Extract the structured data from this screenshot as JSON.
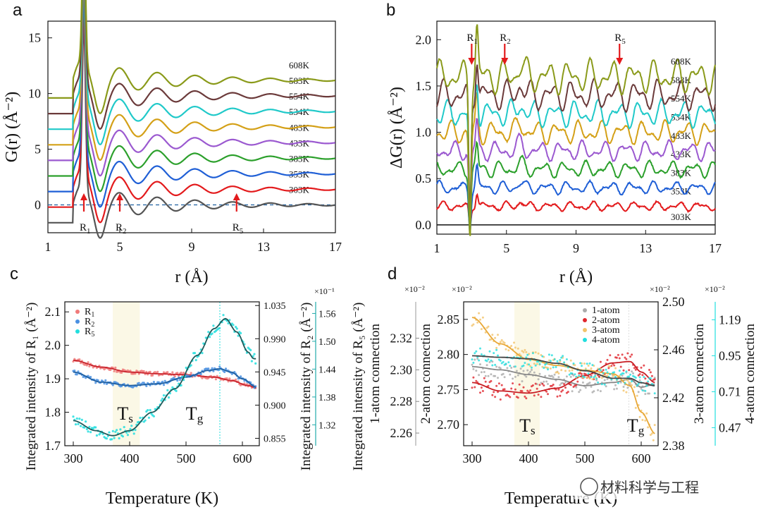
{
  "watermark": "材料科学与工程",
  "chart_data": [
    {
      "panel": "a",
      "type": "line",
      "xlabel": "r (Å)",
      "ylabel": "G(r) (Å⁻²)",
      "xlim": [
        1,
        17
      ],
      "ylim": [
        -2.5,
        16.5
      ],
      "xticks": [
        1,
        5,
        9,
        13,
        17
      ],
      "yticks": [
        0,
        5,
        10,
        15
      ],
      "series": [
        {
          "name": "303K",
          "color": "#555555",
          "offset": 0
        },
        {
          "name": "353K",
          "color": "#e31a1c",
          "offset": 1.4
        },
        {
          "name": "383K",
          "color": "#1f5fd6",
          "offset": 2.8
        },
        {
          "name": "433K",
          "color": "#2ca02c",
          "offset": 4.2
        },
        {
          "name": "483K",
          "color": "#9b59d0",
          "offset": 5.6
        },
        {
          "name": "534K",
          "color": "#d4a017",
          "offset": 7.0
        },
        {
          "name": "554K",
          "color": "#20c9c9",
          "offset": 8.4
        },
        {
          "name": "583K",
          "color": "#6b3a3a",
          "offset": 9.8
        },
        {
          "name": "608K",
          "color": "#8a9a1a",
          "offset": 11.2
        }
      ],
      "annotations": [
        {
          "label": "R",
          "sub": "1",
          "x": 3.0
        },
        {
          "label": "R",
          "sub": "2",
          "x": 5.0
        },
        {
          "label": "R",
          "sub": "5",
          "x": 11.5
        }
      ],
      "baseline": 0
    },
    {
      "panel": "b",
      "type": "line",
      "xlabel": "r (Å)",
      "ylabel": "ΔG(r) (Å⁻²)",
      "xlim": [
        1,
        17
      ],
      "ylim": [
        -0.1,
        2.2
      ],
      "xticks": [
        1,
        5,
        9,
        13,
        17
      ],
      "yticks": [
        0.0,
        0.5,
        1.0,
        1.5,
        2.0
      ],
      "yticklabels": [
        "0.0",
        "0.5",
        "1.0",
        "1.5",
        "2.0"
      ],
      "series": [
        {
          "name": "303K",
          "color": "#555555",
          "offset": 0.0
        },
        {
          "name": "353K",
          "color": "#e31a1c",
          "offset": 0.2
        },
        {
          "name": "383K",
          "color": "#1f5fd6",
          "offset": 0.4
        },
        {
          "name": "433K",
          "color": "#2ca02c",
          "offset": 0.6
        },
        {
          "name": "483K",
          "color": "#9b59d0",
          "offset": 0.8
        },
        {
          "name": "534K",
          "color": "#d4a017",
          "offset": 1.0
        },
        {
          "name": "554K",
          "color": "#20c9c9",
          "offset": 1.2
        },
        {
          "name": "583K",
          "color": "#6b3a3a",
          "offset": 1.4
        },
        {
          "name": "608K",
          "color": "#8a9a1a",
          "offset": 1.6
        }
      ],
      "annotations": [
        {
          "label": "R",
          "sub": "1",
          "x": 3.0
        },
        {
          "label": "R",
          "sub": "2",
          "x": 4.9
        },
        {
          "label": "R",
          "sub": "5",
          "x": 11.5
        }
      ]
    },
    {
      "panel": "c",
      "type": "scatter",
      "xlabel": "Temperature (K)",
      "xlim": [
        285,
        630
      ],
      "xticks": [
        300,
        400,
        500,
        600
      ],
      "axes": [
        {
          "label": "Integrated intensity of R₁ (Å⁻²)",
          "ylim": [
            1.7,
            2.13
          ],
          "ticks": [
            1.7,
            1.8,
            1.9,
            2.0,
            2.1
          ],
          "ticklabels": [
            "1.7",
            "1.8",
            "1.9",
            "2.0",
            "2.1"
          ]
        },
        {
          "label": "Integrated intensity of R₂ (Å⁻²)",
          "ylim": [
            0.845,
            1.04
          ],
          "ticks": [
            0.855,
            0.9,
            0.945,
            0.99,
            1.035
          ],
          "ticklabels": [
            "0.855",
            "0.900",
            "0.945",
            "0.990",
            "1.035"
          ],
          "exp": "×10⁻¹"
        },
        {
          "label": "Integrated intensity of R₅ (Å⁻²)",
          "ylim": [
            1.275,
            1.585
          ],
          "ticks": [
            1.32,
            1.38,
            1.44,
            1.5,
            1.56
          ],
          "ticklabels": [
            "1.32",
            "1.38",
            "1.44",
            "1.50",
            "1.56"
          ]
        }
      ],
      "series": [
        {
          "name": "R1",
          "color": "#f07a7a",
          "fit": "#c8232c",
          "x": [
            300,
            350,
            400,
            450,
            500,
            550,
            580,
            610,
            625
          ],
          "y": [
            1.955,
            1.935,
            1.92,
            1.915,
            1.912,
            1.905,
            1.895,
            1.88,
            1.872
          ]
        },
        {
          "name": "R2",
          "color": "#4a90e2",
          "fit": "#1f5fa0",
          "x": [
            300,
            350,
            400,
            450,
            500,
            540,
            560,
            580,
            600,
            625
          ],
          "y": [
            1.92,
            1.89,
            1.88,
            1.885,
            1.905,
            1.925,
            1.93,
            1.92,
            1.9,
            1.875
          ]
        },
        {
          "name": "R5",
          "color": "#22dede",
          "fit": "#1f5a5a",
          "x": [
            300,
            340,
            370,
            400,
            440,
            480,
            520,
            550,
            570,
            590,
            610,
            620
          ],
          "y": [
            1.775,
            1.745,
            1.73,
            1.745,
            1.8,
            1.87,
            1.97,
            2.05,
            2.08,
            2.04,
            1.98,
            1.96
          ]
        }
      ],
      "shade": [
        370,
        418
      ],
      "vline": 560,
      "annotations": [
        {
          "text": "T",
          "sub": "s",
          "x": 392
        },
        {
          "text": "T",
          "sub": "g",
          "x": 515
        }
      ]
    },
    {
      "panel": "d",
      "type": "scatter",
      "xlabel": "Temperature (K)",
      "xlim": [
        285,
        630
      ],
      "xticks": [
        300,
        400,
        500,
        600
      ],
      "axes": [
        {
          "label": "1-atom connection",
          "ylim": [
            2.252,
            2.343
          ],
          "ticks": [
            2.26,
            2.28,
            2.3,
            2.32
          ],
          "ticklabels": [
            "2.26",
            "2.28",
            "2.30",
            "2.32"
          ],
          "exp": "×10⁻²"
        },
        {
          "label": "2-atom connection",
          "ylim": [
            2.67,
            2.875
          ],
          "ticks": [
            2.7,
            2.75,
            2.8,
            2.85
          ],
          "ticklabels": [
            "2.70",
            "2.75",
            "2.80",
            "2.85"
          ],
          "exp": "×10⁻²"
        },
        {
          "label": "3-atom connection",
          "ylim": [
            2.38,
            2.5
          ],
          "ticks": [
            2.38,
            2.42,
            2.46,
            2.5
          ],
          "ticklabels": [
            "2.38",
            "2.42",
            "2.46",
            "2.50"
          ],
          "exp": "×10⁻²"
        },
        {
          "label": "4-atom connection",
          "ylim": [
            0.35,
            1.31
          ],
          "ticks": [
            0.47,
            0.71,
            0.95,
            1.19
          ],
          "ticklabels": [
            "0.47",
            "0.71",
            "0.95",
            "1.19"
          ],
          "exp": "×10⁻²"
        }
      ],
      "series": [
        {
          "name": "1-atom",
          "color": "#aaaaaa",
          "fit": "#888888",
          "axis": 0,
          "x": [
            300,
            350,
            400,
            450,
            500,
            550,
            580,
            600,
            625
          ],
          "y": [
            2.302,
            2.3,
            2.297,
            2.294,
            2.29,
            2.292,
            2.294,
            2.289,
            2.291
          ]
        },
        {
          "name": "2-atom",
          "color": "#e0262d",
          "fit": "#c81e24",
          "axis": 1,
          "x": [
            300,
            350,
            400,
            450,
            500,
            550,
            580,
            600,
            625
          ],
          "y": [
            2.76,
            2.748,
            2.745,
            2.752,
            2.77,
            2.788,
            2.79,
            2.775,
            2.76
          ]
        },
        {
          "name": "3-atom",
          "color": "#f2c36a",
          "fit": "#e8a838",
          "axis": 2,
          "x": [
            300,
            350,
            400,
            450,
            500,
            550,
            580,
            600,
            625
          ],
          "y": [
            2.487,
            2.465,
            2.452,
            2.447,
            2.443,
            2.44,
            2.43,
            2.408,
            2.39
          ]
        },
        {
          "name": "4-atom",
          "color": "#22dede",
          "fit": "#444444",
          "axis": 3,
          "x": [
            300,
            350,
            400,
            450,
            500,
            550,
            580,
            600,
            625
          ],
          "y": [
            0.95,
            0.94,
            0.93,
            0.9,
            0.85,
            0.8,
            0.8,
            0.77,
            0.75
          ]
        }
      ],
      "shade": [
        375,
        420
      ],
      "vline": 578,
      "annotations": [
        {
          "text": "T",
          "sub": "s",
          "x": 398
        },
        {
          "text": "T",
          "sub": "g",
          "x": 590
        }
      ]
    }
  ]
}
